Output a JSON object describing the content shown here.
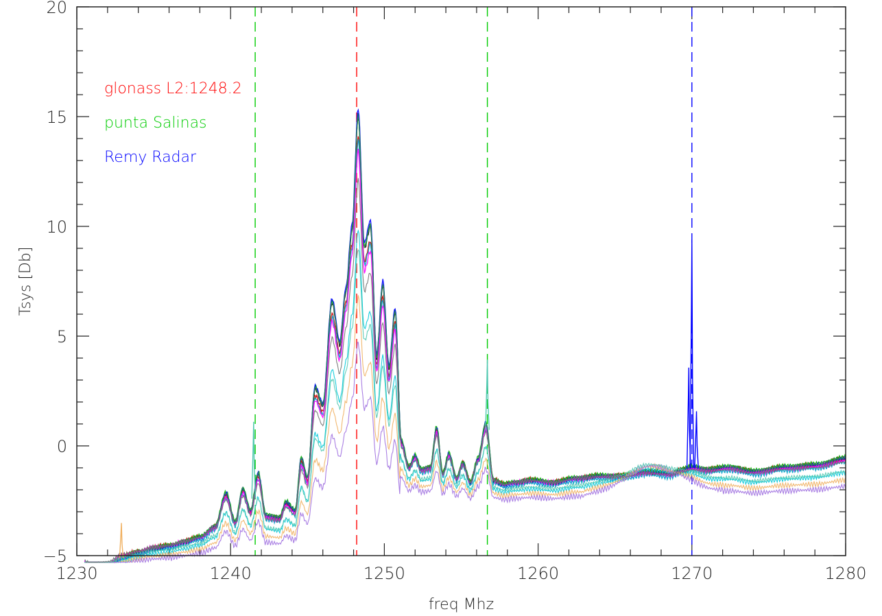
{
  "chart_data": {
    "type": "line",
    "title": "",
    "xlabel": "freq Mhz",
    "ylabel": "Tsys [Db]",
    "xlim": [
      1230,
      1280
    ],
    "ylim": [
      -5,
      20
    ],
    "x_ticks": [
      1230,
      1240,
      1250,
      1260,
      1270,
      1280
    ],
    "y_ticks": [
      -5,
      0,
      5,
      10,
      15,
      20
    ],
    "x_tick_labels": [
      "1230",
      "1240",
      "1250",
      "1260",
      "1270",
      "1280"
    ],
    "y_tick_labels": [
      "−5",
      "0",
      "5",
      "10",
      "15",
      "20"
    ],
    "legend": [
      {
        "label": "glonass L2:1248.2",
        "color": "#ff0000"
      },
      {
        "label": "punta Salinas",
        "color": "#00cc00"
      },
      {
        "label": "Remy Radar",
        "color": "#0000ff"
      }
    ],
    "vertical_markers": [
      {
        "x": 1241.6,
        "color": "#00cc00"
      },
      {
        "x": 1248.2,
        "color": "#ff0000"
      },
      {
        "x": 1256.7,
        "color": "#00cc00"
      },
      {
        "x": 1270.0,
        "color": "#0000ff"
      }
    ],
    "base_profile": [
      [
        1230.0,
        -5.3
      ],
      [
        1231.0,
        -5.6
      ],
      [
        1232.0,
        -5.5
      ],
      [
        1233.0,
        -5.1
      ],
      [
        1234.0,
        -4.9
      ],
      [
        1235.0,
        -4.7
      ],
      [
        1236.0,
        -4.6
      ],
      [
        1237.0,
        -4.4
      ],
      [
        1238.0,
        -4.2
      ],
      [
        1239.0,
        -3.7
      ],
      [
        1239.7,
        -2.2
      ],
      [
        1240.3,
        -3.5
      ],
      [
        1240.8,
        -2.0
      ],
      [
        1241.3,
        -3.0
      ],
      [
        1241.8,
        -1.3
      ],
      [
        1242.3,
        -3.2
      ],
      [
        1243.2,
        -3.3
      ],
      [
        1243.6,
        -2.6
      ],
      [
        1244.2,
        -3.0
      ],
      [
        1244.6,
        -0.6
      ],
      [
        1245.0,
        -1.5
      ],
      [
        1245.5,
        2.6
      ],
      [
        1246.0,
        1.8
      ],
      [
        1246.6,
        6.5
      ],
      [
        1247.1,
        4.6
      ],
      [
        1247.5,
        7.0
      ],
      [
        1247.9,
        9.8
      ],
      [
        1248.3,
        15.0
      ],
      [
        1248.7,
        9.0
      ],
      [
        1249.1,
        10.0
      ],
      [
        1249.5,
        4.0
      ],
      [
        1249.9,
        7.3
      ],
      [
        1250.3,
        3.5
      ],
      [
        1250.7,
        6.1
      ],
      [
        1251.1,
        0.2
      ],
      [
        1251.6,
        -1.0
      ],
      [
        1252.0,
        -0.5
      ],
      [
        1252.4,
        -1.1
      ],
      [
        1253.0,
        -1.0
      ],
      [
        1253.4,
        0.8
      ],
      [
        1253.8,
        -1.3
      ],
      [
        1254.2,
        -0.4
      ],
      [
        1254.7,
        -1.5
      ],
      [
        1255.1,
        -0.8
      ],
      [
        1255.6,
        -1.7
      ],
      [
        1256.1,
        -0.6
      ],
      [
        1256.6,
        1.0
      ],
      [
        1257.1,
        -1.6
      ],
      [
        1257.8,
        -1.8
      ],
      [
        1258.5,
        -1.7
      ],
      [
        1259.5,
        -1.6
      ],
      [
        1261.0,
        -1.7
      ],
      [
        1262.5,
        -1.5
      ],
      [
        1264.0,
        -1.4
      ],
      [
        1265.5,
        -1.4
      ],
      [
        1267.0,
        -1.2
      ],
      [
        1268.5,
        -1.3
      ],
      [
        1269.5,
        -1.1
      ],
      [
        1270.0,
        -1.0
      ],
      [
        1271.0,
        -1.1
      ],
      [
        1272.5,
        -1.0
      ],
      [
        1274.0,
        -1.2
      ],
      [
        1276.0,
        -1.0
      ],
      [
        1278.0,
        -0.9
      ],
      [
        1280.0,
        -0.6
      ]
    ],
    "series": [
      {
        "color": "#000000",
        "peak": 1.0,
        "offset": 0.0,
        "wobble": 0.06
      },
      {
        "color": "#cc0000",
        "peak": 0.95,
        "offset": 0.05,
        "wobble": 0.07
      },
      {
        "color": "#00b000",
        "peak": 1.0,
        "offset": 0.1,
        "wobble": 0.05
      },
      {
        "color": "#0000ff",
        "peak": 1.02,
        "offset": 0.0,
        "wobble": 0.06
      },
      {
        "color": "#00a0c8",
        "peak": 0.95,
        "offset": -0.1,
        "wobble": 0.08
      },
      {
        "color": "#ff00ff",
        "peak": 0.92,
        "offset": 0.0,
        "wobble": 0.07
      },
      {
        "color": "#2e8b57",
        "peak": 1.0,
        "offset": 0.05,
        "wobble": 0.05
      },
      {
        "color": "#00c8d8",
        "peak": 0.75,
        "offset": -0.4,
        "wobble": 0.07
      },
      {
        "color": "#f0b060",
        "peak": 0.6,
        "offset": -0.6,
        "wobble": 0.08
      },
      {
        "color": "#a070e0",
        "peak": 0.5,
        "offset": -0.8,
        "wobble": 0.09
      },
      {
        "color": "#50c8b0",
        "peak": 0.7,
        "offset": -0.3,
        "wobble": 0.06
      },
      {
        "color": "#707070",
        "peak": 0.85,
        "offset": 0.0,
        "wobble": 0.05
      }
    ],
    "spikes": [
      {
        "x": 1241.5,
        "height": 3.5,
        "color": "#50c8b0"
      },
      {
        "x": 1256.7,
        "height": 3.2,
        "color": "#50c8b0"
      },
      {
        "x": 1232.9,
        "height": 1.6,
        "color": "#f0b060"
      },
      {
        "x": 1269.8,
        "height": 4.6,
        "color": "#0000ff"
      },
      {
        "x": 1270.0,
        "height": 10.4,
        "color": "#0000ff"
      },
      {
        "x": 1270.3,
        "height": 2.6,
        "color": "#0000ff"
      }
    ]
  }
}
